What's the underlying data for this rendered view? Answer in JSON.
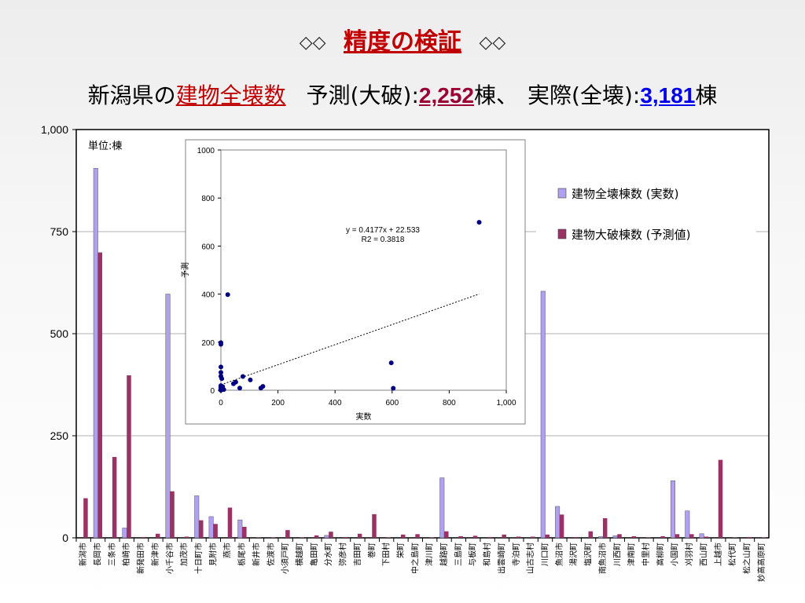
{
  "slide": {
    "title_dec_left": "◇◇",
    "title": "精度の検証",
    "title_dec_right": "◇◇",
    "sub_prefix": "新潟県の",
    "sub_keyword": "建物全壊数",
    "sub_pred_label": "予測(大破):",
    "sub_pred_value": "2,252",
    "sub_pred_unit": "棟、",
    "sub_act_label": "実際(全壊):",
    "sub_act_value": "3,181",
    "sub_act_unit": "棟"
  },
  "chart_data": [
    {
      "type": "bar",
      "unit_note": "単位:棟",
      "ylim": [
        0,
        1000
      ],
      "yticks": [
        0,
        250,
        500,
        750,
        1000
      ],
      "ytick_labels": [
        "0",
        "250",
        "500",
        "750",
        "1,000"
      ],
      "grid": true,
      "legend_position": "top-right",
      "categories": [
        "新潟市",
        "長岡市",
        "三条市",
        "柏崎市",
        "新発田市",
        "新津市",
        "小千谷市",
        "加茂市",
        "十日町市",
        "見附市",
        "燕市",
        "栃尾市",
        "新井市",
        "佐渡市",
        "小須戸町",
        "横越町",
        "亀田町",
        "分水町",
        "弥彦村",
        "吉田町",
        "巻町",
        "下田村",
        "栄町",
        "中之島町",
        "津川町",
        "越路町",
        "三島町",
        "与板町",
        "和島村",
        "出雲崎町",
        "寺泊町",
        "山古志村",
        "川口町",
        "魚沼市",
        "湯沢町",
        "塩沢町",
        "南魚沼市",
        "川西町",
        "津南町",
        "中里村",
        "高柳町",
        "小国町",
        "刈羽村",
        "西山町",
        "上越市",
        "松代町",
        "松之山町",
        "妙高高原町"
      ],
      "series": [
        {
          "name": "建物全壊棟数 (実数)",
          "color": "#b0a0f0",
          "values": [
            0,
            905,
            0,
            24,
            0,
            0,
            597,
            0,
            103,
            52,
            0,
            44,
            0,
            0,
            0,
            0,
            0,
            6,
            0,
            0,
            0,
            0,
            0,
            0,
            0,
            147,
            0,
            0,
            0,
            0,
            0,
            0,
            604,
            77,
            0,
            0,
            3,
            5,
            0,
            0,
            0,
            140,
            66,
            10,
            0,
            0,
            0,
            0
          ]
        },
        {
          "name": "建物大破棟数 (予測値)",
          "color": "#993366",
          "values": [
            97,
            699,
            198,
            398,
            2,
            10,
            114,
            3,
            43,
            34,
            74,
            27,
            1,
            1,
            19,
            1,
            6,
            15,
            2,
            10,
            58,
            1,
            8,
            9,
            1,
            16,
            4,
            5,
            2,
            8,
            3,
            3,
            8,
            57,
            2,
            16,
            48,
            9,
            4,
            1,
            4,
            9,
            9,
            3,
            191,
            1,
            2,
            1
          ]
        }
      ]
    },
    {
      "type": "scatter",
      "xlim": [
        0,
        1000
      ],
      "ylim": [
        0,
        1000
      ],
      "xticks": [
        0,
        200,
        400,
        600,
        800,
        1000
      ],
      "xtick_labels": [
        "0",
        "200",
        "400",
        "600",
        "800",
        "1,000"
      ],
      "yticks": [
        0,
        200,
        400,
        600,
        800,
        1000
      ],
      "ytick_labels": [
        "0",
        "200",
        "400",
        "600",
        "800",
        "1000"
      ],
      "xlabel": "実数",
      "ylabel": "予測",
      "trendline": {
        "slope": 0.4177,
        "intercept": 22.533,
        "x_range": [
          0,
          905
        ]
      },
      "equation": "y = 0.4177x + 22.533",
      "r2": "R2 = 0.3818",
      "x": [
        0,
        905,
        0,
        24,
        0,
        0,
        597,
        0,
        103,
        52,
        0,
        44,
        0,
        0,
        0,
        0,
        0,
        6,
        0,
        0,
        0,
        0,
        0,
        0,
        0,
        147,
        0,
        0,
        0,
        0,
        0,
        0,
        604,
        77,
        0,
        0,
        3,
        5,
        0,
        0,
        0,
        140,
        66,
        10,
        0,
        0,
        0,
        0
      ],
      "y": [
        97,
        699,
        198,
        398,
        2,
        10,
        114,
        3,
        43,
        34,
        74,
        27,
        1,
        1,
        19,
        1,
        6,
        15,
        2,
        10,
        58,
        1,
        8,
        9,
        1,
        16,
        4,
        5,
        2,
        8,
        3,
        3,
        8,
        57,
        2,
        16,
        48,
        9,
        4,
        1,
        4,
        9,
        9,
        3,
        191,
        1,
        2,
        1
      ]
    }
  ]
}
